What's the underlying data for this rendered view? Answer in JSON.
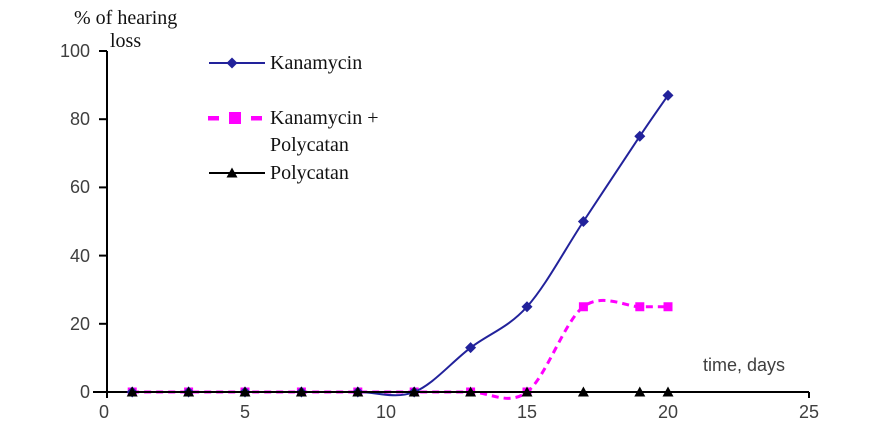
{
  "title": {
    "line1": "% of hearing",
    "line2": "loss"
  },
  "x_axis_label": "time, days",
  "legend": {
    "items": [
      {
        "label": "Kanamycin"
      },
      {
        "label_line1": "Kanamycin +",
        "label_line2": "Polycatan"
      },
      {
        "label": "Polycatan"
      }
    ]
  },
  "chart_data": {
    "type": "line",
    "title": "% of hearing loss",
    "xlabel": "time, days",
    "ylabel": "% of hearing loss",
    "x": [
      1,
      3,
      5,
      7,
      9,
      11,
      13,
      15,
      17,
      19,
      20
    ],
    "series": [
      {
        "name": "Kanamycin",
        "color": "#22229B",
        "marker": "diamond",
        "line_style": "solid",
        "smooth": true,
        "values": [
          0,
          0,
          0,
          0,
          0,
          0,
          13,
          25,
          50,
          75,
          87
        ]
      },
      {
        "name": "Kanamycin + Polycatan",
        "color": "#FF00FF",
        "marker": "square",
        "line_style": "dashed",
        "smooth": true,
        "values": [
          0,
          0,
          0,
          0,
          0,
          0,
          0,
          0,
          25,
          25,
          25
        ]
      },
      {
        "name": "Polycatan",
        "color": "#000000",
        "marker": "triangle",
        "line_style": "solid",
        "smooth": false,
        "values": [
          0,
          0,
          0,
          0,
          0,
          0,
          0,
          0,
          0,
          0,
          0
        ]
      }
    ],
    "x_ticks": [
      0,
      5,
      10,
      15,
      20,
      25
    ],
    "y_ticks": [
      0,
      20,
      40,
      60,
      80,
      100
    ],
    "xlim": [
      0,
      25.5
    ],
    "ylim": [
      0,
      100
    ],
    "grid": false,
    "legend_position": "upper-left-inside",
    "axis_color": "#000000"
  }
}
